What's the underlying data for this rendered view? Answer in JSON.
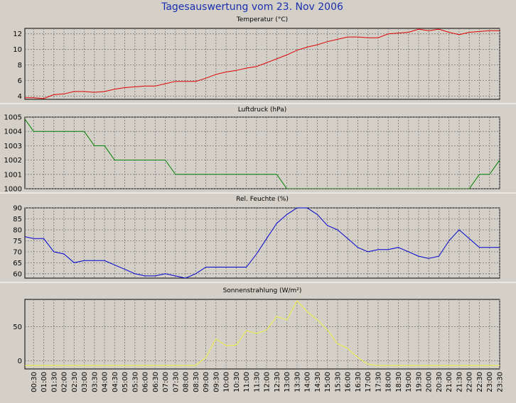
{
  "title": "Tagesauswertung vom 23. Nov 2006",
  "chart_data": [
    {
      "type": "line",
      "title": "Temperatur (°C)",
      "color": "#e00000",
      "ylim": [
        3.6,
        12.7
      ],
      "yticks": [
        4,
        6,
        8,
        10,
        12
      ],
      "grid": true,
      "values": [
        3.8,
        3.8,
        3.7,
        4.2,
        4.3,
        4.6,
        4.6,
        4.5,
        4.6,
        4.9,
        5.1,
        5.2,
        5.3,
        5.3,
        5.6,
        5.9,
        5.9,
        5.9,
        6.3,
        6.8,
        7.1,
        7.3,
        7.6,
        7.8,
        8.3,
        8.8,
        9.3,
        9.9,
        10.3,
        10.6,
        11.0,
        11.3,
        11.6,
        11.6,
        11.5,
        11.5,
        12.0,
        12.1,
        12.2,
        12.6,
        12.4,
        12.6,
        12.2,
        11.9,
        12.2,
        12.3,
        12.4,
        12.4
      ]
    },
    {
      "type": "line",
      "title": "Luftdruck (hPa)",
      "color": "#008000",
      "ylim": [
        1000,
        1005
      ],
      "yticks": [
        1000,
        1001,
        1002,
        1003,
        1004,
        1005
      ],
      "grid": true,
      "values": [
        1005,
        1004,
        1004,
        1004,
        1004,
        1004,
        1004,
        1003,
        1003,
        1002,
        1002,
        1002,
        1002,
        1002,
        1002,
        1001,
        1001,
        1001,
        1001,
        1001,
        1001,
        1001,
        1001,
        1001,
        1001,
        1001,
        1000,
        1000,
        1000,
        1000,
        1000,
        1000,
        1000,
        1000,
        1000,
        1000,
        1000,
        1000,
        1000,
        1000,
        1000,
        1000,
        1000,
        1000,
        1000,
        1001,
        1001,
        1002
      ]
    },
    {
      "type": "line",
      "title": "Rel. Feuchte (%)",
      "color": "#0000d0",
      "ylim": [
        58,
        90
      ],
      "yticks": [
        60,
        65,
        70,
        75,
        80,
        85,
        90
      ],
      "grid": true,
      "values": [
        77,
        76,
        76,
        70,
        69,
        65,
        66,
        66,
        66,
        64,
        62,
        60,
        59,
        59,
        60,
        59,
        58,
        60,
        63,
        63,
        63,
        63,
        63,
        69,
        76,
        83,
        87,
        90,
        90,
        87,
        82,
        80,
        76,
        72,
        70,
        71,
        71,
        72,
        70,
        68,
        67,
        68,
        75,
        80,
        76,
        72,
        72,
        72
      ]
    },
    {
      "type": "line",
      "title": "Sonnenstrahlung (W/m²)",
      "color": "#f0f040",
      "ylim": [
        -12,
        90
      ],
      "yticks": [
        0,
        50
      ],
      "grid": true,
      "values": [
        -7,
        -7,
        -7,
        -7,
        -7,
        -7,
        -7,
        -7,
        -7,
        -7,
        -7,
        -7,
        -7,
        -7,
        -7,
        -7,
        -7,
        -7,
        5,
        32,
        22,
        23,
        44,
        40,
        45,
        65,
        60,
        88,
        72,
        60,
        45,
        25,
        18,
        5,
        -5,
        -7,
        -7,
        -7,
        -7,
        -7,
        -7,
        -7,
        -7,
        -7,
        -7,
        -7,
        -7,
        -7
      ],
      "categories": [
        null,
        "00:30",
        "01:00",
        "01:30",
        "02:00",
        "02:30",
        "03:00",
        "03:30",
        "04:00",
        "04:30",
        "05:00",
        "05:30",
        "06:00",
        "06:30",
        "07:00",
        "07:30",
        "08:00",
        "08:30",
        "09:00",
        "09:30",
        "10:00",
        "10:30",
        "11:00",
        "11:30",
        "12:00",
        "12:30",
        "13:00",
        "13:30",
        "14:00",
        "14:30",
        "15:00",
        "15:30",
        "16:00",
        "16:30",
        "17:00",
        "17:30",
        "18:00",
        "18:30",
        "19:00",
        "19:30",
        "20:00",
        "20:30",
        "21:00",
        "21:30",
        "22:00",
        "22:30",
        "23:00",
        "23:30"
      ]
    }
  ]
}
